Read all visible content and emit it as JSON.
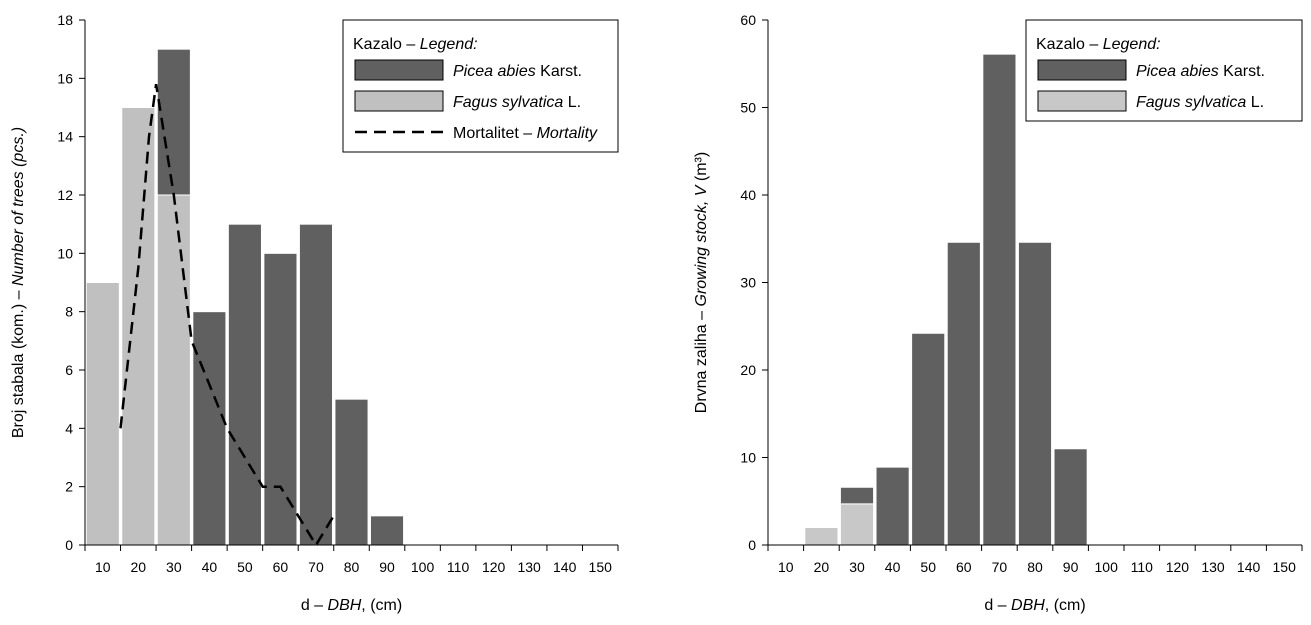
{
  "chart_data": [
    {
      "type": "bar",
      "stacked": true,
      "x_ticks": [
        10,
        20,
        30,
        40,
        50,
        60,
        70,
        80,
        90,
        100,
        110,
        120,
        130,
        140,
        150
      ],
      "categories": [
        10,
        20,
        30,
        40,
        50,
        60,
        70,
        80,
        90
      ],
      "series": [
        {
          "name": "Fagus sylvatica L.",
          "name_parts": [
            "",
            "Fagus sylvatica",
            " L."
          ],
          "color": "#c0c0c0",
          "values": [
            9,
            15,
            12,
            0,
            0,
            0,
            0,
            0,
            0
          ]
        },
        {
          "name": "Picea abies Karst.",
          "name_parts": [
            "",
            "Picea abies",
            " Karst."
          ],
          "color": "#606060",
          "values": [
            0,
            0,
            5,
            8,
            11,
            10,
            11,
            5,
            1
          ]
        }
      ],
      "line_series": {
        "name": "Mortalitet – Mortality",
        "name_parts": [
          "Mortalitet – ",
          "Mortality",
          ""
        ],
        "style": "dashed",
        "x": [
          15,
          20,
          23,
          25,
          30,
          35,
          40,
          45,
          50,
          55,
          60,
          65,
          70,
          75
        ],
        "y": [
          4,
          9.5,
          14,
          15.8,
          12,
          7,
          5.5,
          4,
          3,
          2,
          2,
          1,
          0,
          1
        ]
      },
      "xlabel": "d – DBH, (cm)",
      "xlabel_parts": [
        "d – ",
        "DBH",
        ", (cm)"
      ],
      "ylabel": "Broj stabala (kom.) – Number of trees (pcs.)",
      "ylabel_parts": [
        "Broj stabala (kom.) – ",
        "Number of trees (pcs.)",
        ""
      ],
      "ylim": [
        0,
        18
      ],
      "y_ticks": [
        0,
        2,
        4,
        6,
        8,
        10,
        12,
        14,
        16,
        18
      ],
      "legend_title": "Kazalo – Legend:",
      "legend_title_parts": [
        "Kazalo – ",
        "Legend:",
        ""
      ],
      "legend_position": "top-right",
      "grid": false
    },
    {
      "type": "bar",
      "stacked": true,
      "x_ticks": [
        10,
        20,
        30,
        40,
        50,
        60,
        70,
        80,
        90,
        100,
        110,
        120,
        130,
        140,
        150
      ],
      "categories": [
        20,
        30,
        40,
        50,
        60,
        70,
        80,
        90
      ],
      "series": [
        {
          "name": "Fagus sylvatica L.",
          "name_parts": [
            "",
            "Fagus sylvatica",
            " L."
          ],
          "color": "#c8c8c8",
          "values": [
            2,
            4.7,
            0,
            0,
            0,
            0,
            0,
            0
          ]
        },
        {
          "name": "Picea abies Karst.",
          "name_parts": [
            "",
            "Picea abies",
            " Karst."
          ],
          "color": "#606060",
          "values": [
            0,
            1.9,
            8.9,
            24.2,
            34.6,
            56.1,
            34.6,
            11
          ]
        }
      ],
      "xlabel": "d – DBH, (cm)",
      "xlabel_parts": [
        "d – ",
        "DBH",
        ", (cm)"
      ],
      "ylabel": "Drvna zaliha – Growing stock, V (m³)",
      "ylabel_parts": [
        "Drvna zaliha – ",
        "Growing stock, V",
        " (m³)"
      ],
      "ylim": [
        0,
        60
      ],
      "y_ticks": [
        0,
        10,
        20,
        30,
        40,
        50,
        60
      ],
      "legend_title": "Kazalo – Legend:",
      "legend_title_parts": [
        "Kazalo – ",
        "Legend:",
        ""
      ],
      "legend_position": "top-right",
      "grid": false
    }
  ]
}
